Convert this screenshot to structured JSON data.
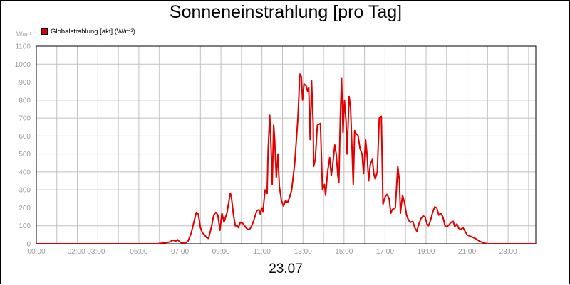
{
  "title": "Sonneneinstrahlung [pro Tag]",
  "unit_label": "W/m²",
  "date_label": "23.07",
  "legend": [
    {
      "name": "Globalstrahlung [akt] (W/m²)",
      "color": "#e00000"
    }
  ],
  "colors": {
    "series": "#e00000",
    "grid": "#c0c0c0",
    "axis_text": "#9a9a9a",
    "frame": "#000000"
  },
  "chart_data": {
    "type": "line",
    "title": "Sonneneinstrahlung [pro Tag]",
    "xlabel": "",
    "ylabel": "W/m²",
    "ylim": [
      0,
      1100
    ],
    "xlim": [
      0,
      24.35
    ],
    "grid": true,
    "legend_position": "top-left",
    "y_ticks": [
      0,
      100,
      200,
      300,
      400,
      500,
      600,
      700,
      800,
      900,
      1000,
      1100
    ],
    "x_ticks": [
      {
        "hour": 0,
        "label": "00:00"
      },
      {
        "hour": 2,
        "label": "02:00 03:00"
      },
      {
        "hour": 5,
        "label": "05:00"
      },
      {
        "hour": 7,
        "label": "07:00"
      },
      {
        "hour": 9,
        "label": "09:00"
      },
      {
        "hour": 11,
        "label": "11:00"
      },
      {
        "hour": 13,
        "label": "13:00"
      },
      {
        "hour": 15,
        "label": "15:00"
      },
      {
        "hour": 17,
        "label": "17:00"
      },
      {
        "hour": 19,
        "label": "19:00"
      },
      {
        "hour": 21,
        "label": "21:00"
      },
      {
        "hour": 23,
        "label": "23:00"
      }
    ],
    "series": [
      {
        "name": "Globalstrahlung [akt] (W/m²)",
        "points": [
          [
            0,
            0
          ],
          [
            5.9,
            0
          ],
          [
            6.2,
            5
          ],
          [
            6.5,
            10
          ],
          [
            6.65,
            20
          ],
          [
            6.8,
            15
          ],
          [
            6.9,
            22
          ],
          [
            7.0,
            10
          ],
          [
            7.1,
            5
          ],
          [
            7.25,
            3
          ],
          [
            7.4,
            15
          ],
          [
            7.55,
            60
          ],
          [
            7.7,
            130
          ],
          [
            7.8,
            175
          ],
          [
            7.9,
            165
          ],
          [
            8.0,
            90
          ],
          [
            8.1,
            60
          ],
          [
            8.2,
            50
          ],
          [
            8.3,
            35
          ],
          [
            8.4,
            30
          ],
          [
            8.55,
            100
          ],
          [
            8.65,
            160
          ],
          [
            8.75,
            175
          ],
          [
            8.85,
            160
          ],
          [
            8.95,
            75
          ],
          [
            9.05,
            170
          ],
          [
            9.15,
            120
          ],
          [
            9.3,
            175
          ],
          [
            9.45,
            280
          ],
          [
            9.5,
            270
          ],
          [
            9.6,
            170
          ],
          [
            9.7,
            100
          ],
          [
            9.8,
            100
          ],
          [
            9.85,
            90
          ],
          [
            9.95,
            120
          ],
          [
            10.05,
            115
          ],
          [
            10.15,
            100
          ],
          [
            10.3,
            80
          ],
          [
            10.4,
            80
          ],
          [
            10.5,
            100
          ],
          [
            10.6,
            130
          ],
          [
            10.75,
            185
          ],
          [
            10.85,
            190
          ],
          [
            10.92,
            165
          ],
          [
            10.98,
            200
          ],
          [
            11.05,
            180
          ],
          [
            11.15,
            300
          ],
          [
            11.25,
            280
          ],
          [
            11.3,
            520
          ],
          [
            11.38,
            715
          ],
          [
            11.45,
            520
          ],
          [
            11.5,
            330
          ],
          [
            11.57,
            660
          ],
          [
            11.62,
            580
          ],
          [
            11.7,
            370
          ],
          [
            11.78,
            500
          ],
          [
            11.85,
            320
          ],
          [
            11.95,
            240
          ],
          [
            12.05,
            210
          ],
          [
            12.15,
            240
          ],
          [
            12.25,
            230
          ],
          [
            12.35,
            260
          ],
          [
            12.45,
            300
          ],
          [
            12.6,
            450
          ],
          [
            12.75,
            700
          ],
          [
            12.85,
            945
          ],
          [
            12.92,
            930
          ],
          [
            12.98,
            800
          ],
          [
            13.05,
            890
          ],
          [
            13.15,
            880
          ],
          [
            13.22,
            850
          ],
          [
            13.28,
            870
          ],
          [
            13.35,
            580
          ],
          [
            13.42,
            910
          ],
          [
            13.5,
            660
          ],
          [
            13.52,
            430
          ],
          [
            13.6,
            470
          ],
          [
            13.7,
            660
          ],
          [
            13.85,
            670
          ],
          [
            13.95,
            300
          ],
          [
            14.05,
            330
          ],
          [
            14.1,
            270
          ],
          [
            14.2,
            400
          ],
          [
            14.3,
            480
          ],
          [
            14.38,
            380
          ],
          [
            14.45,
            440
          ],
          [
            14.55,
            550
          ],
          [
            14.62,
            500
          ],
          [
            14.7,
            380
          ],
          [
            14.75,
            340
          ],
          [
            14.82,
            700
          ],
          [
            14.88,
            920
          ],
          [
            14.95,
            620
          ],
          [
            15.02,
            800
          ],
          [
            15.1,
            680
          ],
          [
            15.15,
            500
          ],
          [
            15.25,
            820
          ],
          [
            15.32,
            760
          ],
          [
            15.38,
            560
          ],
          [
            15.45,
            330
          ],
          [
            15.52,
            630
          ],
          [
            15.6,
            610
          ],
          [
            15.68,
            605
          ],
          [
            15.78,
            530
          ],
          [
            15.88,
            500
          ],
          [
            15.95,
            390
          ],
          [
            16.05,
            580
          ],
          [
            16.12,
            500
          ],
          [
            16.2,
            350
          ],
          [
            16.28,
            440
          ],
          [
            16.38,
            470
          ],
          [
            16.45,
            390
          ],
          [
            16.52,
            360
          ],
          [
            16.62,
            400
          ],
          [
            16.72,
            700
          ],
          [
            16.82,
            710
          ],
          [
            16.9,
            220
          ],
          [
            17.0,
            260
          ],
          [
            17.1,
            275
          ],
          [
            17.2,
            250
          ],
          [
            17.28,
            170
          ],
          [
            17.35,
            190
          ],
          [
            17.5,
            200
          ],
          [
            17.62,
            430
          ],
          [
            17.7,
            350
          ],
          [
            17.75,
            170
          ],
          [
            17.85,
            270
          ],
          [
            17.95,
            230
          ],
          [
            18.05,
            160
          ],
          [
            18.15,
            130
          ],
          [
            18.25,
            120
          ],
          [
            18.35,
            125
          ],
          [
            18.45,
            90
          ],
          [
            18.55,
            70
          ],
          [
            18.65,
            110
          ],
          [
            18.75,
            140
          ],
          [
            18.85,
            155
          ],
          [
            18.95,
            150
          ],
          [
            19.05,
            110
          ],
          [
            19.12,
            100
          ],
          [
            19.22,
            130
          ],
          [
            19.32,
            175
          ],
          [
            19.42,
            205
          ],
          [
            19.52,
            200
          ],
          [
            19.62,
            160
          ],
          [
            19.72,
            170
          ],
          [
            19.82,
            150
          ],
          [
            19.92,
            100
          ],
          [
            20.02,
            95
          ],
          [
            20.12,
            105
          ],
          [
            20.22,
            120
          ],
          [
            20.32,
            125
          ],
          [
            20.4,
            95
          ],
          [
            20.5,
            110
          ],
          [
            20.6,
            85
          ],
          [
            20.7,
            80
          ],
          [
            20.8,
            90
          ],
          [
            20.9,
            70
          ],
          [
            21.0,
            50
          ],
          [
            21.2,
            40
          ],
          [
            21.4,
            30
          ],
          [
            21.6,
            15
          ],
          [
            21.8,
            5
          ],
          [
            22.0,
            0
          ],
          [
            24.35,
            0
          ]
        ]
      }
    ]
  }
}
